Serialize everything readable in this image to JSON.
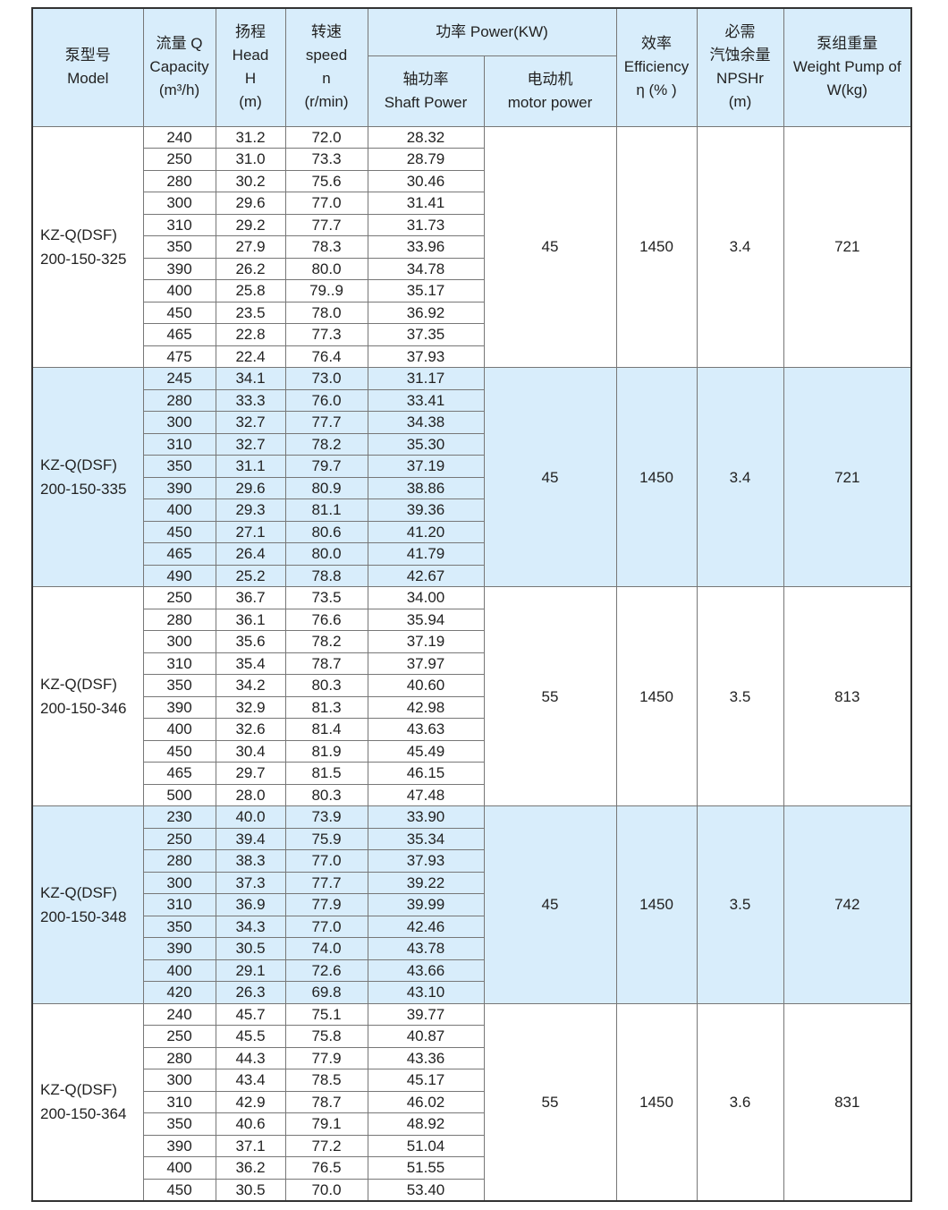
{
  "header": {
    "model": [
      "泵型号",
      "Model"
    ],
    "capacity": [
      "流量 Q",
      "Capacity",
      "(m³/h)"
    ],
    "head": [
      "扬程",
      "Head",
      "H",
      "(m)"
    ],
    "speed": [
      "转速",
      "speed",
      "n",
      "(r/min)"
    ],
    "power": "功率 Power(KW)",
    "shaft": [
      "轴功率",
      "Shaft Power"
    ],
    "motor": [
      "电动机",
      "motor power"
    ],
    "efficiency": [
      "效率",
      "Efficiency",
      "η (% )"
    ],
    "npsh": [
      "必需",
      "汽蚀余量",
      "NPSHr",
      "(m)"
    ],
    "weight": [
      "泵组重量",
      "Weight Pump of",
      "W(kg)"
    ]
  },
  "groups": [
    {
      "model": [
        "KZ-Q(DSF)",
        "200-150-325"
      ],
      "motor": "45",
      "eff": "1450",
      "npsh": "3.4",
      "weight": "721",
      "shaded": false,
      "rows": [
        [
          "240",
          "31.2",
          "72.0",
          "28.32"
        ],
        [
          "250",
          "31.0",
          "73.3",
          "28.79"
        ],
        [
          "280",
          "30.2",
          "75.6",
          "30.46"
        ],
        [
          "300",
          "29.6",
          "77.0",
          "31.41"
        ],
        [
          "310",
          "29.2",
          "77.7",
          "31.73"
        ],
        [
          "350",
          "27.9",
          "78.3",
          "33.96"
        ],
        [
          "390",
          "26.2",
          "80.0",
          "34.78"
        ],
        [
          "400",
          "25.8",
          "79..9",
          "35.17"
        ],
        [
          "450",
          "23.5",
          "78.0",
          "36.92"
        ],
        [
          "465",
          "22.8",
          "77.3",
          "37.35"
        ],
        [
          "475",
          "22.4",
          "76.4",
          "37.93"
        ]
      ]
    },
    {
      "model": [
        "KZ-Q(DSF)",
        "200-150-335"
      ],
      "motor": "45",
      "eff": "1450",
      "npsh": "3.4",
      "weight": "721",
      "shaded": true,
      "rows": [
        [
          "245",
          "34.1",
          "73.0",
          "31.17"
        ],
        [
          "280",
          "33.3",
          "76.0",
          "33.41"
        ],
        [
          "300",
          "32.7",
          "77.7",
          "34.38"
        ],
        [
          "310",
          "32.7",
          "78.2",
          "35.30"
        ],
        [
          "350",
          "31.1",
          "79.7",
          "37.19"
        ],
        [
          "390",
          "29.6",
          "80.9",
          "38.86"
        ],
        [
          "400",
          "29.3",
          "81.1",
          "39.36"
        ],
        [
          "450",
          "27.1",
          "80.6",
          "41.20"
        ],
        [
          "465",
          "26.4",
          "80.0",
          "41.79"
        ],
        [
          "490",
          "25.2",
          "78.8",
          "42.67"
        ]
      ]
    },
    {
      "model": [
        "KZ-Q(DSF)",
        "200-150-346"
      ],
      "motor": "55",
      "eff": "1450",
      "npsh": "3.5",
      "weight": "813",
      "shaded": false,
      "rows": [
        [
          "250",
          "36.7",
          "73.5",
          "34.00"
        ],
        [
          "280",
          "36.1",
          "76.6",
          "35.94"
        ],
        [
          "300",
          "35.6",
          "78.2",
          "37.19"
        ],
        [
          "310",
          "35.4",
          "78.7",
          "37.97"
        ],
        [
          "350",
          "34.2",
          "80.3",
          "40.60"
        ],
        [
          "390",
          "32.9",
          "81.3",
          "42.98"
        ],
        [
          "400",
          "32.6",
          "81.4",
          "43.63"
        ],
        [
          "450",
          "30.4",
          "81.9",
          "45.49"
        ],
        [
          "465",
          "29.7",
          "81.5",
          "46.15"
        ],
        [
          "500",
          "28.0",
          "80.3",
          "47.48"
        ]
      ]
    },
    {
      "model": [
        "KZ-Q(DSF)",
        "200-150-348"
      ],
      "motor": "45",
      "eff": "1450",
      "npsh": "3.5",
      "weight": "742",
      "shaded": true,
      "rows": [
        [
          "230",
          "40.0",
          "73.9",
          "33.90"
        ],
        [
          "250",
          "39.4",
          "75.9",
          "35.34"
        ],
        [
          "280",
          "38.3",
          "77.0",
          "37.93"
        ],
        [
          "300",
          "37.3",
          "77.7",
          "39.22"
        ],
        [
          "310",
          "36.9",
          "77.9",
          "39.99"
        ],
        [
          "350",
          "34.3",
          "77.0",
          "42.46"
        ],
        [
          "390",
          "30.5",
          "74.0",
          "43.78"
        ],
        [
          "400",
          "29.1",
          "72.6",
          "43.66"
        ],
        [
          "420",
          "26.3",
          "69.8",
          "43.10"
        ]
      ]
    },
    {
      "model": [
        "KZ-Q(DSF)",
        "200-150-364"
      ],
      "motor": "55",
      "eff": "1450",
      "npsh": "3.6",
      "weight": "831",
      "shaded": false,
      "rows": [
        [
          "240",
          "45.7",
          "75.1",
          "39.77"
        ],
        [
          "250",
          "45.5",
          "75.8",
          "40.87"
        ],
        [
          "280",
          "44.3",
          "77.9",
          "43.36"
        ],
        [
          "300",
          "43.4",
          "78.5",
          "45.17"
        ],
        [
          "310",
          "42.9",
          "78.7",
          "46.02"
        ],
        [
          "350",
          "40.6",
          "79.1",
          "48.92"
        ],
        [
          "390",
          "37.1",
          "77.2",
          "51.04"
        ],
        [
          "400",
          "36.2",
          "76.5",
          "51.55"
        ],
        [
          "450",
          "30.5",
          "70.0",
          "53.40"
        ]
      ]
    }
  ]
}
